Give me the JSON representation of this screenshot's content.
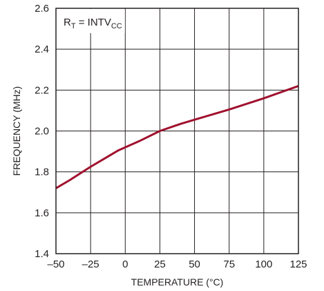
{
  "chart_data": {
    "type": "line",
    "xlabel": "TEMPERATURE (°C)",
    "ylabel": "FREQUENCY (MHz)",
    "xlim": [
      -50,
      125
    ],
    "ylim": [
      1.4,
      2.6
    ],
    "xticks": [
      -50,
      -25,
      0,
      25,
      50,
      75,
      100,
      125
    ],
    "yticks": [
      1.4,
      1.6,
      1.8,
      2.0,
      2.2,
      2.4,
      2.6
    ],
    "xtick_labels": [
      "–50",
      "–25",
      "0",
      "25",
      "50",
      "75",
      "100",
      "125"
    ],
    "ytick_labels": [
      "1.4",
      "1.6",
      "1.8",
      "2.0",
      "2.2",
      "2.4",
      "2.6"
    ],
    "grid": true,
    "annotation": {
      "parts": [
        {
          "text": "R",
          "style": "normal"
        },
        {
          "text": "T",
          "style": "sub"
        },
        {
          "text": " = INTV",
          "style": "normal"
        },
        {
          "text": "CC",
          "style": "sub"
        }
      ]
    },
    "series": [
      {
        "color": "#a0112e",
        "x": [
          -50,
          -40,
          -25,
          -15,
          -5,
          0,
          10,
          25,
          40,
          50,
          75,
          100,
          125
        ],
        "y": [
          1.72,
          1.76,
          1.825,
          1.865,
          1.905,
          1.92,
          1.95,
          2.0,
          2.035,
          2.055,
          2.105,
          2.16,
          2.22
        ]
      }
    ]
  }
}
